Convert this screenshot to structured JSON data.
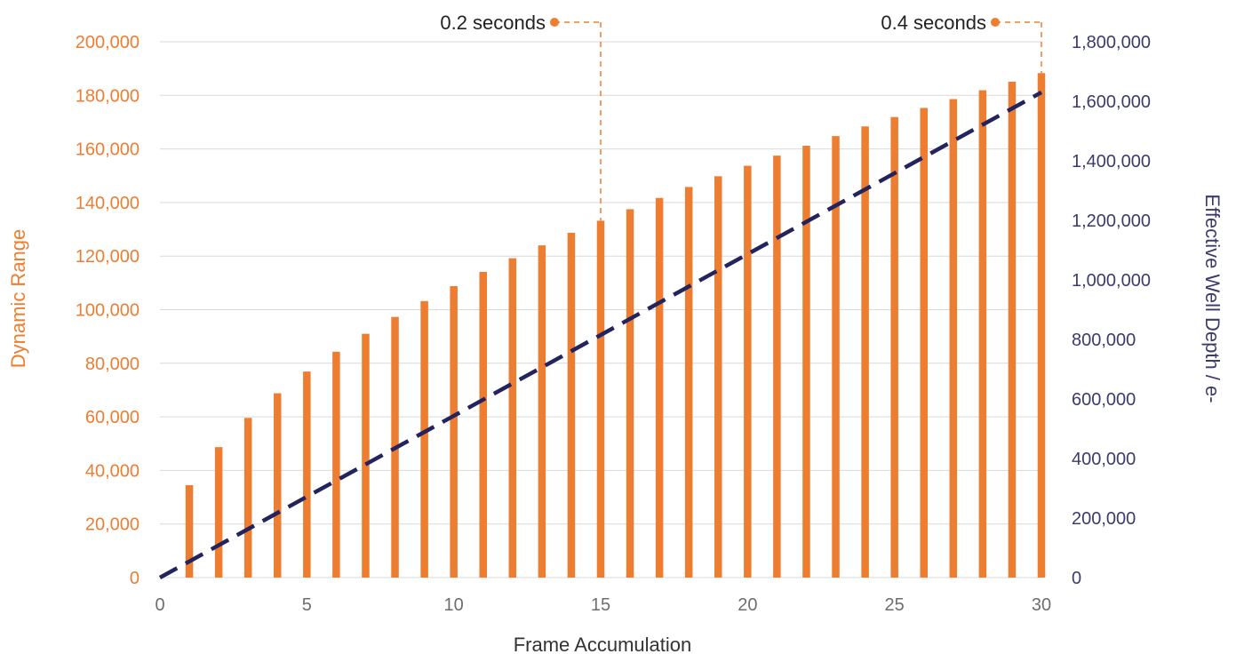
{
  "colors": {
    "bar": "#ED7D31",
    "line": "#23235E",
    "left_axis_text": "#ED7D31",
    "right_axis_text": "#3B3B6E",
    "x_axis_text": "#6E6E6E",
    "grid": "#D9D9D9",
    "annotation": "#ED7D31"
  },
  "chart_data": {
    "type": "bar",
    "title": "",
    "grid": true,
    "xlabel": "Frame Accumulation",
    "ylabel": "Dynamic Range",
    "y2label": "Effective Well Depth / e-",
    "xlim": [
      0,
      30
    ],
    "ylim": [
      0,
      200000
    ],
    "y2lim": [
      0,
      1800000
    ],
    "x_ticks": [
      "0",
      "5",
      "10",
      "15",
      "20",
      "25",
      "30"
    ],
    "y_ticks": [
      "0",
      "20,000",
      "40,000",
      "60,000",
      "80,000",
      "100,000",
      "120,000",
      "140,000",
      "160,000",
      "180,000",
      "200,000"
    ],
    "y2_ticks": [
      "0",
      "200,000",
      "400,000",
      "600,000",
      "800,000",
      "1,000,000",
      "1,200,000",
      "1,400,000",
      "1,600,000",
      "1,800,000"
    ],
    "series": [
      {
        "type": "bar",
        "axis": "left",
        "x": [
          1,
          2,
          3,
          4,
          5,
          6,
          7,
          8,
          9,
          10,
          11,
          12,
          13,
          14,
          15,
          16,
          17,
          18,
          19,
          20,
          21,
          22,
          23,
          24,
          25,
          26,
          27,
          28,
          29,
          30
        ],
        "values": [
          34500,
          48700,
          59600,
          68800,
          76900,
          84300,
          91000,
          97300,
          103200,
          108800,
          114100,
          119200,
          124000,
          128700,
          133200,
          137500,
          141700,
          145800,
          149800,
          153700,
          157500,
          161200,
          164800,
          168400,
          171900,
          175300,
          178600,
          181900,
          185100,
          188300
        ]
      },
      {
        "type": "line",
        "axis": "right",
        "style": "dashed",
        "x": [
          0,
          30
        ],
        "values": [
          0,
          1630000
        ]
      }
    ],
    "annotations": [
      {
        "label": "0.2 seconds",
        "x": 15
      },
      {
        "label": "0.4 seconds",
        "x": 30
      }
    ]
  }
}
